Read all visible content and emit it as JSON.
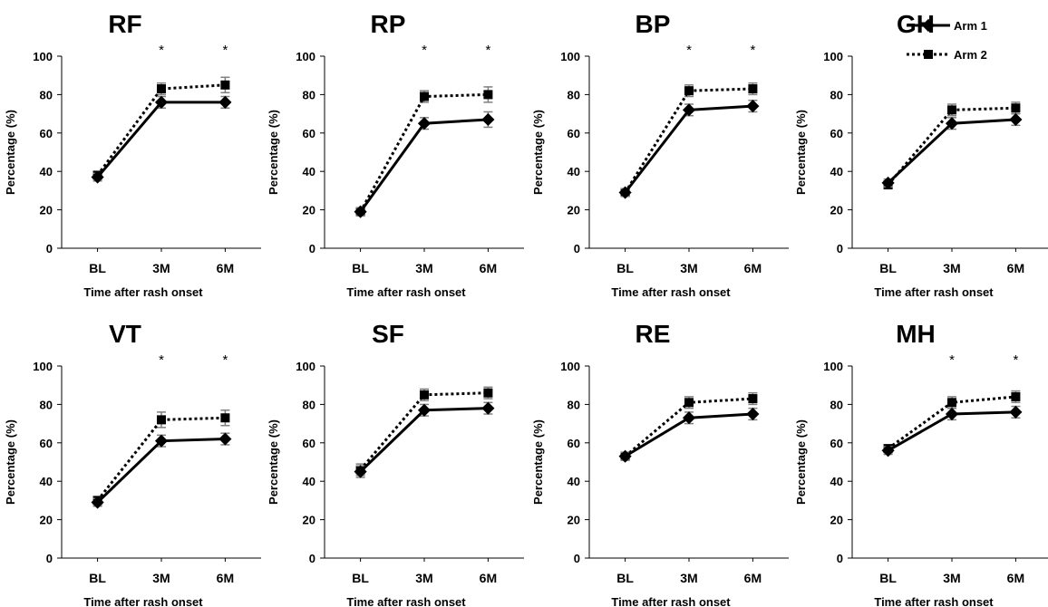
{
  "legend": [
    {
      "label": "Arm 1",
      "marker": "diamond",
      "line": "solid"
    },
    {
      "label": "Arm 2",
      "marker": "square",
      "line": "dotted"
    }
  ],
  "colors": {
    "ink": "#000000",
    "errorbar": "#7f7f7f"
  },
  "chart_data": [
    {
      "type": "line",
      "title": "RF",
      "categories": [
        "BL",
        "3M",
        "6M"
      ],
      "xlabel": "Time after rash onset",
      "ylabel": "Percentage (%)",
      "ylim": [
        0,
        100
      ],
      "yticks": [
        0,
        20,
        40,
        60,
        80,
        100
      ],
      "grid": false,
      "series": [
        {
          "name": "Arm 1",
          "values": [
            37,
            76,
            76
          ],
          "errors": [
            2,
            3,
            3
          ]
        },
        {
          "name": "Arm 2",
          "values": [
            38,
            83,
            85
          ],
          "errors": [
            2,
            3,
            4
          ]
        }
      ],
      "significance": [
        "",
        "*",
        "*"
      ]
    },
    {
      "type": "line",
      "title": "RP",
      "categories": [
        "BL",
        "3M",
        "6M"
      ],
      "xlabel": "Time after rash onset",
      "ylabel": "Percentage (%)",
      "ylim": [
        0,
        100
      ],
      "yticks": [
        0,
        20,
        40,
        60,
        80,
        100
      ],
      "grid": false,
      "series": [
        {
          "name": "Arm 1",
          "values": [
            19,
            65,
            67
          ],
          "errors": [
            2,
            3,
            4
          ]
        },
        {
          "name": "Arm 2",
          "values": [
            19,
            79,
            80
          ],
          "errors": [
            2,
            3,
            4
          ]
        }
      ],
      "significance": [
        "",
        "*",
        "*"
      ]
    },
    {
      "type": "line",
      "title": "BP",
      "categories": [
        "BL",
        "3M",
        "6M"
      ],
      "xlabel": "Time after rash onset",
      "ylabel": "Percentage (%)",
      "ylim": [
        0,
        100
      ],
      "yticks": [
        0,
        20,
        40,
        60,
        80,
        100
      ],
      "grid": false,
      "series": [
        {
          "name": "Arm 1",
          "values": [
            29,
            72,
            74
          ],
          "errors": [
            2,
            3,
            3
          ]
        },
        {
          "name": "Arm 2",
          "values": [
            29,
            82,
            83
          ],
          "errors": [
            2,
            3,
            3
          ]
        }
      ],
      "significance": [
        "",
        "*",
        "*"
      ]
    },
    {
      "type": "line",
      "title": "GH",
      "categories": [
        "BL",
        "3M",
        "6M"
      ],
      "xlabel": "Time after rash onset",
      "ylabel": "Percentage (%)",
      "ylim": [
        0,
        100
      ],
      "yticks": [
        0,
        20,
        40,
        60,
        80,
        100
      ],
      "grid": false,
      "series": [
        {
          "name": "Arm 1",
          "values": [
            34,
            65,
            67
          ],
          "errors": [
            2,
            3,
            3
          ]
        },
        {
          "name": "Arm 2",
          "values": [
            33,
            72,
            73
          ],
          "errors": [
            2,
            3,
            3
          ]
        }
      ],
      "significance": [
        "",
        "",
        ""
      ]
    },
    {
      "type": "line",
      "title": "VT",
      "categories": [
        "BL",
        "3M",
        "6M"
      ],
      "xlabel": "Time after rash onset",
      "ylabel": "Percentage (%)",
      "ylim": [
        0,
        100
      ],
      "yticks": [
        0,
        20,
        40,
        60,
        80,
        100
      ],
      "grid": false,
      "series": [
        {
          "name": "Arm 1",
          "values": [
            29,
            61,
            62
          ],
          "errors": [
            2,
            3,
            3
          ]
        },
        {
          "name": "Arm 2",
          "values": [
            30,
            72,
            73
          ],
          "errors": [
            2,
            4,
            4
          ]
        }
      ],
      "significance": [
        "",
        "*",
        "*"
      ]
    },
    {
      "type": "line",
      "title": "SF",
      "categories": [
        "BL",
        "3M",
        "6M"
      ],
      "xlabel": "Time after rash onset",
      "ylabel": "Percentage (%)",
      "ylim": [
        0,
        100
      ],
      "yticks": [
        0,
        20,
        40,
        60,
        80,
        100
      ],
      "grid": false,
      "series": [
        {
          "name": "Arm 1",
          "values": [
            45,
            77,
            78
          ],
          "errors": [
            3,
            3,
            3
          ]
        },
        {
          "name": "Arm 2",
          "values": [
            46,
            85,
            86
          ],
          "errors": [
            3,
            3,
            3
          ]
        }
      ],
      "significance": [
        "",
        "",
        ""
      ]
    },
    {
      "type": "line",
      "title": "RE",
      "categories": [
        "BL",
        "3M",
        "6M"
      ],
      "xlabel": "Time after rash onset",
      "ylabel": "Percentage (%)",
      "ylim": [
        0,
        100
      ],
      "yticks": [
        0,
        20,
        40,
        60,
        80,
        100
      ],
      "grid": false,
      "series": [
        {
          "name": "Arm 1",
          "values": [
            53,
            73,
            75
          ],
          "errors": [
            2,
            3,
            3
          ]
        },
        {
          "name": "Arm 2",
          "values": [
            53,
            81,
            83
          ],
          "errors": [
            2,
            3,
            3
          ]
        }
      ],
      "significance": [
        "",
        "",
        ""
      ]
    },
    {
      "type": "line",
      "title": "MH",
      "categories": [
        "BL",
        "3M",
        "6M"
      ],
      "xlabel": "Time after rash onset",
      "ylabel": "Percentage (%)",
      "ylim": [
        0,
        100
      ],
      "yticks": [
        0,
        20,
        40,
        60,
        80,
        100
      ],
      "grid": false,
      "series": [
        {
          "name": "Arm 1",
          "values": [
            56,
            75,
            76
          ],
          "errors": [
            2,
            3,
            3
          ]
        },
        {
          "name": "Arm 2",
          "values": [
            57,
            81,
            84
          ],
          "errors": [
            2,
            3,
            3
          ]
        }
      ],
      "significance": [
        "",
        "*",
        "*"
      ]
    }
  ]
}
